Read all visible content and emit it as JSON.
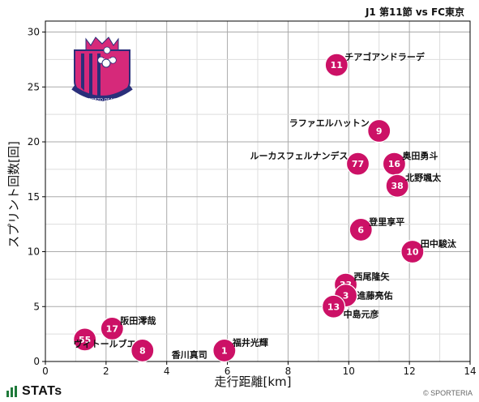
{
  "header": {
    "title": "J1 第11節 vs FC東京"
  },
  "footer": {
    "brand": "STATs",
    "credit": "© SPORTERIA"
  },
  "team": {
    "logo_text": "CEREZO OSAKA"
  },
  "colors": {
    "marker": "#cc1166",
    "marker_text": "#ffffff",
    "grid": "#bbbbbb",
    "logo_pink": "#d6297a",
    "logo_navy": "#2a2f7a",
    "stats_green": "#1f7a3a"
  },
  "chart_data": {
    "type": "scatter",
    "title": "",
    "xlabel": "走行距離[km]",
    "ylabel": "スプリント回数[回]",
    "xlim": [
      0,
      14
    ],
    "ylim": [
      0,
      31
    ],
    "xticks": [
      0,
      2,
      4,
      6,
      8,
      10,
      12,
      14
    ],
    "yticks": [
      0,
      5,
      10,
      15,
      20,
      25,
      30
    ],
    "grid": true,
    "points": [
      {
        "number": "11",
        "name": "チアゴアンドラーデ",
        "x": 9.6,
        "y": 27
      },
      {
        "number": "9",
        "name": "ラファエルハットン",
        "x": 11.0,
        "y": 21
      },
      {
        "number": "77",
        "name": "ルーカスフェルナンデス",
        "x": 10.3,
        "y": 18
      },
      {
        "number": "16",
        "name": "奥田勇斗",
        "x": 11.5,
        "y": 18
      },
      {
        "number": "38",
        "name": "北野颯太",
        "x": 11.6,
        "y": 16
      },
      {
        "number": "6",
        "name": "登里享平",
        "x": 10.4,
        "y": 12
      },
      {
        "number": "10",
        "name": "田中駿汰",
        "x": 12.1,
        "y": 10
      },
      {
        "number": "33",
        "name": "西尾隆矢",
        "x": 9.9,
        "y": 7
      },
      {
        "number": "3",
        "name": "進藤亮佑",
        "x": 9.9,
        "y": 6
      },
      {
        "number": "13",
        "name": "中島元彦",
        "x": 9.5,
        "y": 5
      },
      {
        "number": "17",
        "name": "阪田澪哉",
        "x": 2.2,
        "y": 3
      },
      {
        "number": "55",
        "name": "ヴィトールブエノ",
        "x": 1.3,
        "y": 2
      },
      {
        "number": "8",
        "name": "香川真司",
        "x": 3.2,
        "y": 1
      },
      {
        "number": "1",
        "name": "福井光輝",
        "x": 5.9,
        "y": 1
      }
    ]
  }
}
